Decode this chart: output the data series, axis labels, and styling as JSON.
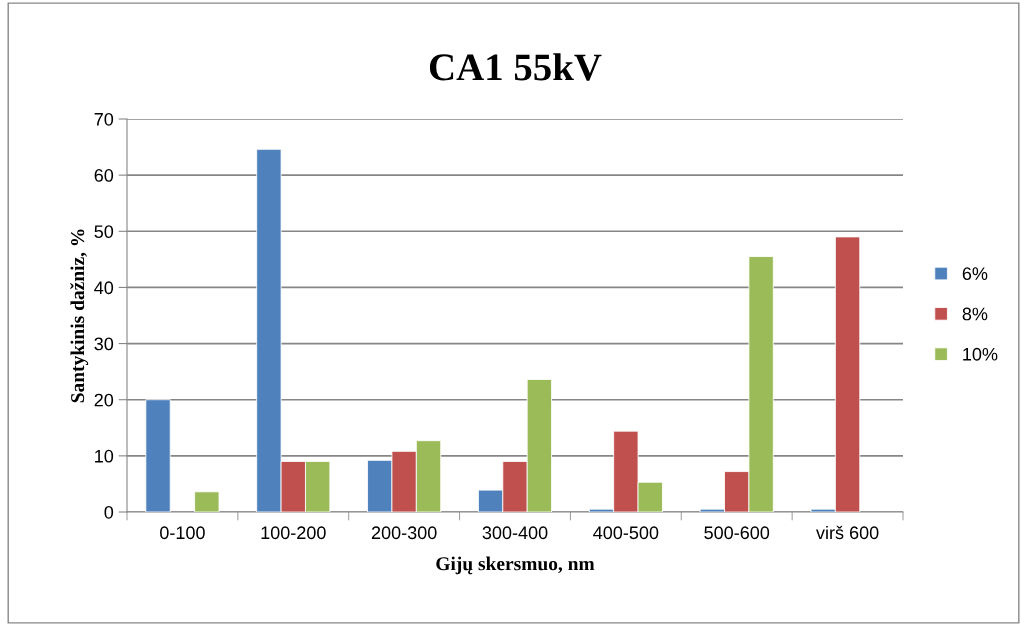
{
  "chart_data": {
    "type": "bar",
    "title": "CA1 55kV",
    "xlabel": "Gijų skersmuo, nm",
    "ylabel": "Santykinis dažniz, %",
    "categories": [
      "0-100",
      "100-200",
      "200-300",
      "300-400",
      "400-500",
      "500-600",
      "virš 600"
    ],
    "series": [
      {
        "name": "6%",
        "color": "#4f81bd",
        "values": [
          20,
          64.6,
          9.2,
          3.9,
          0.5,
          0.5,
          0.5
        ]
      },
      {
        "name": "8%",
        "color": "#c0504d",
        "values": [
          null,
          9.0,
          10.8,
          9.0,
          14.4,
          7.2,
          49.0
        ]
      },
      {
        "name": "10%",
        "color": "#9bbb59",
        "values": [
          3.6,
          9.0,
          12.7,
          23.6,
          5.3,
          45.5,
          null
        ]
      }
    ],
    "ylim": [
      0,
      70
    ],
    "yticks": [
      0,
      10,
      20,
      30,
      40,
      50,
      60,
      70
    ],
    "grid": "y",
    "legend": "right"
  }
}
